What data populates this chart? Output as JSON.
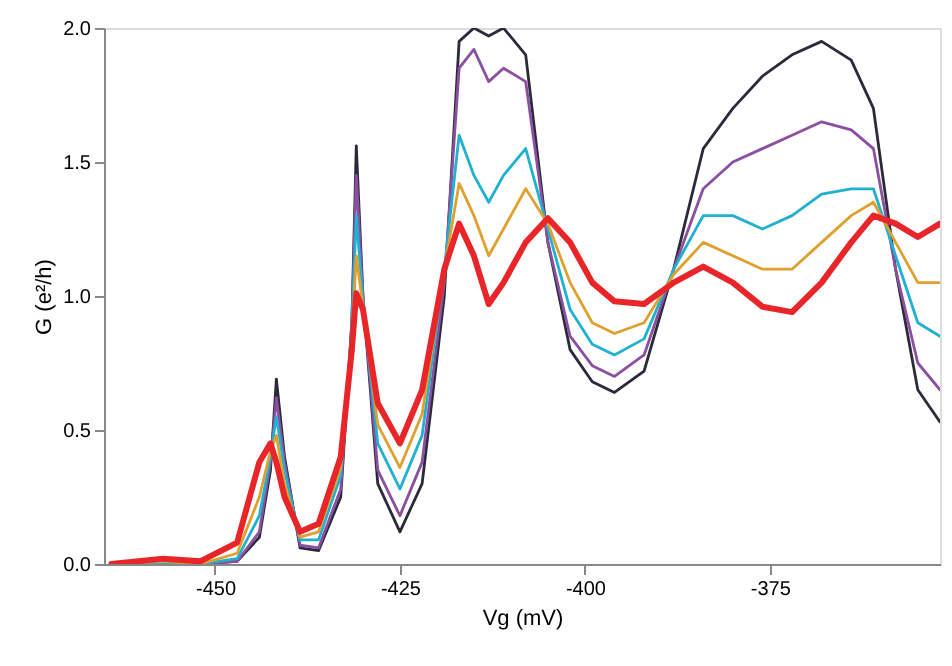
{
  "chart_data": {
    "type": "line",
    "xlabel": "Vg (mV)",
    "ylabel": "G (e²/h)",
    "x": [
      -464,
      -457,
      -452,
      -447,
      -444,
      -442.5,
      -441.7,
      -440.6,
      -438.5,
      -436,
      -433,
      -431.5,
      -430.9,
      -430,
      -428,
      -425,
      -422,
      -419,
      -417,
      -415,
      -413,
      -411,
      -408,
      -405,
      -402,
      -399,
      -396,
      -392,
      -388,
      -384,
      -380,
      -376,
      -372,
      -368,
      -364,
      -361,
      -358,
      -355,
      -352
    ],
    "series": [
      {
        "color": "#2a2a3a",
        "values": [
          0,
          0,
          0,
          0.01,
          0.1,
          0.35,
          0.69,
          0.4,
          0.06,
          0.05,
          0.25,
          0.9,
          1.56,
          1.0,
          0.3,
          0.12,
          0.3,
          1.0,
          1.95,
          2.0,
          1.97,
          2.0,
          1.9,
          1.2,
          0.8,
          0.68,
          0.64,
          0.72,
          1.1,
          1.55,
          1.7,
          1.82,
          1.9,
          1.95,
          1.88,
          1.7,
          1.1,
          0.65,
          0.53
        ]
      },
      {
        "color": "#8a4f9e",
        "values": [
          0,
          0,
          0,
          0.01,
          0.12,
          0.38,
          0.62,
          0.38,
          0.07,
          0.06,
          0.28,
          0.9,
          1.45,
          1.0,
          0.35,
          0.18,
          0.38,
          1.05,
          1.85,
          1.92,
          1.8,
          1.85,
          1.8,
          1.2,
          0.85,
          0.74,
          0.7,
          0.78,
          1.1,
          1.4,
          1.5,
          1.55,
          1.6,
          1.65,
          1.62,
          1.55,
          1.1,
          0.75,
          0.65
        ]
      },
      {
        "color": "#20b0d0",
        "values": [
          0,
          0,
          0,
          0.02,
          0.18,
          0.4,
          0.55,
          0.35,
          0.09,
          0.09,
          0.33,
          0.88,
          1.3,
          0.98,
          0.45,
          0.28,
          0.48,
          1.1,
          1.6,
          1.45,
          1.35,
          1.45,
          1.55,
          1.25,
          0.95,
          0.82,
          0.78,
          0.84,
          1.1,
          1.3,
          1.3,
          1.25,
          1.3,
          1.38,
          1.4,
          1.4,
          1.15,
          0.9,
          0.85
        ]
      },
      {
        "color": "#e0a030",
        "values": [
          0,
          0.01,
          0,
          0.04,
          0.25,
          0.42,
          0.48,
          0.3,
          0.1,
          0.12,
          0.36,
          0.84,
          1.15,
          0.96,
          0.52,
          0.36,
          0.56,
          1.1,
          1.42,
          1.3,
          1.15,
          1.25,
          1.4,
          1.27,
          1.05,
          0.9,
          0.86,
          0.9,
          1.08,
          1.2,
          1.15,
          1.1,
          1.1,
          1.2,
          1.3,
          1.35,
          1.2,
          1.05,
          1.05
        ]
      },
      {
        "color": "#e8262a",
        "values": [
          0,
          0.02,
          0.01,
          0.08,
          0.38,
          0.45,
          0.38,
          0.25,
          0.12,
          0.15,
          0.4,
          0.8,
          1.01,
          0.95,
          0.6,
          0.45,
          0.65,
          1.1,
          1.27,
          1.15,
          0.97,
          1.05,
          1.2,
          1.29,
          1.2,
          1.05,
          0.98,
          0.97,
          1.05,
          1.11,
          1.05,
          0.96,
          0.94,
          1.05,
          1.2,
          1.3,
          1.27,
          1.22,
          1.27
        ]
      }
    ],
    "xlim": [
      -465,
      -352
    ],
    "xticks": [
      -450,
      -425,
      -400,
      -375
    ],
    "ylim": [
      0,
      2.0
    ],
    "yticks": [
      {
        "value": 0,
        "label": "0.0"
      },
      0.5,
      {
        "value": 1.0,
        "label": "1.0"
      },
      1.5,
      {
        "value": 2.0,
        "label": "2.0"
      }
    ],
    "grid": false,
    "line_style": "solid",
    "marker": "none"
  }
}
